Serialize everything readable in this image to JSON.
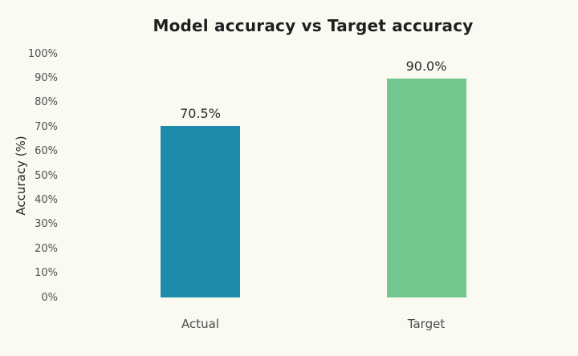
{
  "title": "Model accuracy vs Target accuracy",
  "colors": {
    "background": "#FAFAF2",
    "title_text": "#1F1F1F",
    "tick_text": "#4F4F4F",
    "category_text": "#4A4A4A",
    "value_text": "#2A2A2A",
    "actual_bar": "#1F8BAD",
    "target_bar": "#72C78E"
  },
  "chart_data": {
    "type": "bar",
    "title": "Model accuracy vs Target accuracy",
    "xlabel": "",
    "ylabel": "Accuracy (%)",
    "categories": [
      "Actual",
      "Target"
    ],
    "values": [
      70.5,
      90.0
    ],
    "value_labels": [
      "70.5%",
      "90.0%"
    ],
    "bar_colors": [
      "#1F8BAD",
      "#72C78E"
    ],
    "ylim": [
      0,
      100
    ],
    "yticks": [
      "0%",
      "10%",
      "20%",
      "30%",
      "40%",
      "50%",
      "60%",
      "70%",
      "80%",
      "90%",
      "100%"
    ],
    "grid": false,
    "legend": "none"
  }
}
